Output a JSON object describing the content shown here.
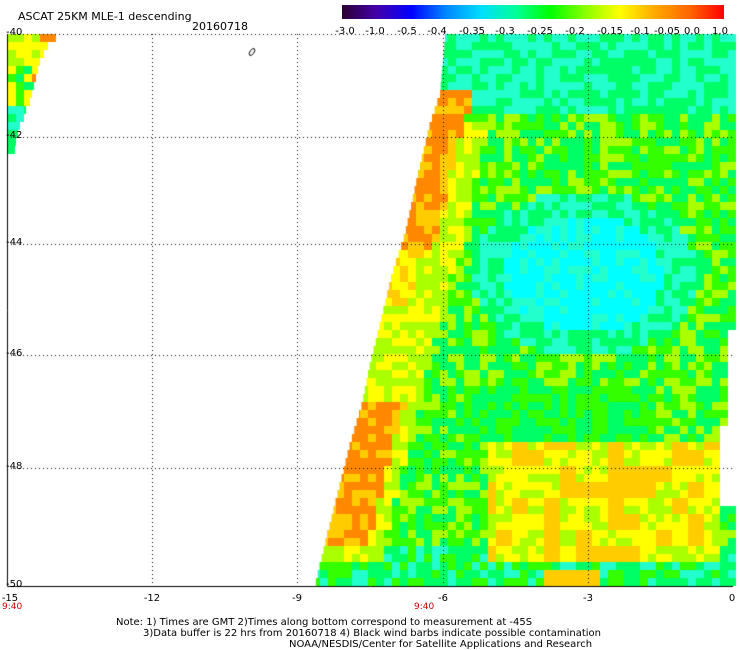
{
  "header": {
    "title": "ASCAT 25KM MLE-1 descending",
    "date": "20160718"
  },
  "colorbar": {
    "labels": [
      "-3.0",
      "-1.0",
      "-0.5",
      "-0.4",
      "-0.35",
      "-0.3",
      "-0.25",
      "-0.2",
      "-0.15",
      "-0.1",
      "-0.05",
      "0.0",
      "1.0"
    ],
    "colors": [
      "#2a0030",
      "#4400aa",
      "#0000ff",
      "#0088ff",
      "#00ddff",
      "#00ff99",
      "#00ff00",
      "#88ff00",
      "#ffff00",
      "#ffaa00",
      "#ff6600",
      "#ff0000"
    ]
  },
  "axes": {
    "x_ticks": [
      "-15",
      "-12",
      "-9",
      "-6",
      "-3",
      "0"
    ],
    "y_ticks": [
      "-40",
      "-42",
      "-44",
      "-46",
      "-48",
      "-50"
    ],
    "time_labels": [
      "9:40",
      "9:40"
    ]
  },
  "footer": {
    "line1": "Note: 1) Times are GMT 2)Times along bottom correspond to measurement at -45S",
    "line2": "3)Data buffer is 22 hrs from 20160718 4) Black wind barbs indicate possible contamination",
    "line3": "NOAA/NESDIS/Center for Satellite Applications and Research"
  },
  "palette": {
    "cyan": "#00ffff",
    "aqua": "#22ffcc",
    "green": "#00ff66",
    "lime": "#33ff00",
    "yellowgreen": "#aaff00",
    "yellow": "#ffff00",
    "lightorange": "#ffcc00",
    "orange": "#ff8800"
  }
}
